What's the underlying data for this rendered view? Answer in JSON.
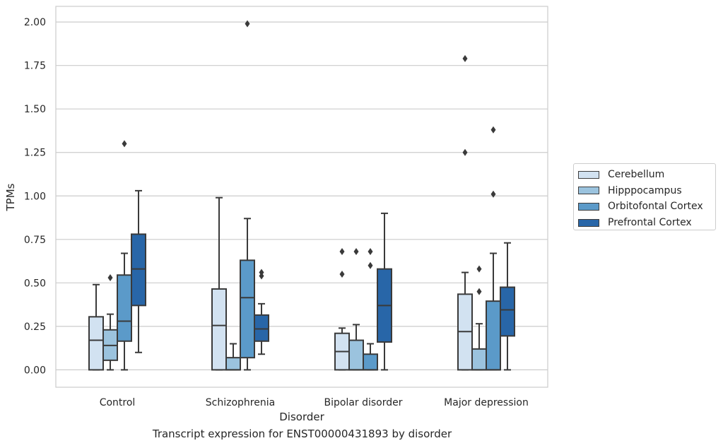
{
  "chart_data": {
    "type": "box",
    "title": "Transcript expression for ENST00000431893 by disorder",
    "xlabel": "Disorder",
    "ylabel": "TPMs",
    "ylim": [
      -0.1,
      2.09
    ],
    "yticks": [
      0.0,
      0.25,
      0.5,
      0.75,
      1.0,
      1.25,
      1.5,
      1.75,
      2.0
    ],
    "ytick_labels": [
      "0.00",
      "0.25",
      "0.50",
      "0.75",
      "1.00",
      "1.25",
      "1.50",
      "1.75",
      "2.00"
    ],
    "categories": [
      "Control",
      "Schizophrenia",
      "Bipolar disorder",
      "Major depression"
    ],
    "grid": "horizontal",
    "legend_position": "right",
    "series": [
      {
        "name": "Cerebellum",
        "color": "#d2e2f1",
        "boxes": [
          {
            "whisker_low": 0.0,
            "q1": 0.0,
            "median": 0.17,
            "q3": 0.305,
            "whisker_high": 0.49,
            "outliers": []
          },
          {
            "whisker_low": 0.0,
            "q1": 0.0,
            "median": 0.255,
            "q3": 0.465,
            "whisker_high": 0.99,
            "outliers": []
          },
          {
            "whisker_low": 0.0,
            "q1": 0.0,
            "median": 0.105,
            "q3": 0.21,
            "whisker_high": 0.24,
            "outliers": [
              0.55,
              0.68
            ]
          },
          {
            "whisker_low": 0.0,
            "q1": 0.0,
            "median": 0.22,
            "q3": 0.435,
            "whisker_high": 0.56,
            "outliers": [
              1.25,
              1.79
            ]
          }
        ]
      },
      {
        "name": "Hipppocampus",
        "color": "#9bc3de",
        "boxes": [
          {
            "whisker_low": 0.0,
            "q1": 0.055,
            "median": 0.14,
            "q3": 0.23,
            "whisker_high": 0.32,
            "outliers": [
              0.53
            ]
          },
          {
            "whisker_low": 0.0,
            "q1": 0.0,
            "median": 0.0,
            "q3": 0.07,
            "whisker_high": 0.15,
            "outliers": []
          },
          {
            "whisker_low": 0.0,
            "q1": 0.0,
            "median": 0.0,
            "q3": 0.17,
            "whisker_high": 0.26,
            "outliers": [
              0.68
            ]
          },
          {
            "whisker_low": 0.0,
            "q1": 0.0,
            "median": 0.0,
            "q3": 0.12,
            "whisker_high": 0.265,
            "outliers": [
              0.45,
              0.58
            ]
          }
        ]
      },
      {
        "name": "Orbitofontal Cortex",
        "color": "#5b9ac9",
        "boxes": [
          {
            "whisker_low": 0.0,
            "q1": 0.165,
            "median": 0.28,
            "q3": 0.545,
            "whisker_high": 0.67,
            "outliers": [
              1.3
            ]
          },
          {
            "whisker_low": 0.0,
            "q1": 0.07,
            "median": 0.415,
            "q3": 0.63,
            "whisker_high": 0.87,
            "outliers": [
              1.99
            ]
          },
          {
            "whisker_low": 0.0,
            "q1": 0.0,
            "median": 0.0,
            "q3": 0.09,
            "whisker_high": 0.15,
            "outliers": [
              0.6,
              0.68
            ]
          },
          {
            "whisker_low": 0.0,
            "q1": 0.0,
            "median": 0.0,
            "q3": 0.395,
            "whisker_high": 0.67,
            "outliers": [
              1.01,
              1.38
            ]
          }
        ]
      },
      {
        "name": "Prefrontal Cortex",
        "color": "#2866a8",
        "boxes": [
          {
            "whisker_low": 0.1,
            "q1": 0.37,
            "median": 0.58,
            "q3": 0.78,
            "whisker_high": 1.03,
            "outliers": []
          },
          {
            "whisker_low": 0.09,
            "q1": 0.165,
            "median": 0.235,
            "q3": 0.315,
            "whisker_high": 0.38,
            "outliers": [
              0.54,
              0.56
            ]
          },
          {
            "whisker_low": 0.0,
            "q1": 0.16,
            "median": 0.37,
            "q3": 0.58,
            "whisker_high": 0.9,
            "outliers": []
          },
          {
            "whisker_low": 0.0,
            "q1": 0.195,
            "median": 0.345,
            "q3": 0.475,
            "whisker_high": 0.73,
            "outliers": []
          }
        ]
      }
    ]
  }
}
